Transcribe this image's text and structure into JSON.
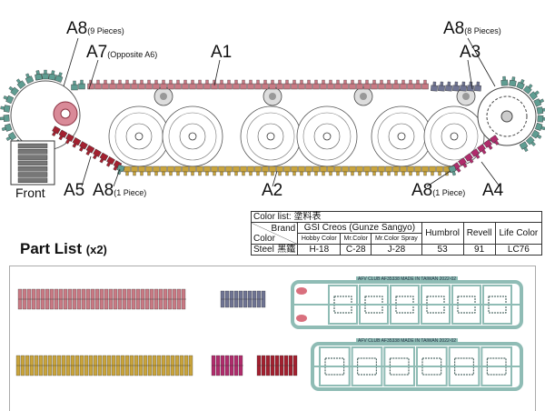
{
  "diagram": {
    "labels": {
      "a8_top_left": {
        "part": "A8",
        "note": "(9 Pieces)"
      },
      "a7": {
        "part": "A7",
        "note": "(Opposite A6)"
      },
      "a1": {
        "part": "A1"
      },
      "a8_top_right": {
        "part": "A8",
        "note": "(8 Pieces)"
      },
      "a3": {
        "part": "A3"
      },
      "a5": {
        "part": "A5"
      },
      "a8_bottom_left": {
        "part": "A8",
        "note": "(1 Piece)"
      },
      "a2": {
        "part": "A2"
      },
      "a8_bottom_right": {
        "part": "A8",
        "note": "(1 Piece)"
      },
      "a4": {
        "part": "A4"
      },
      "front": "Front"
    },
    "colors": {
      "A1": "#c97a84",
      "A2": "#c9a43c",
      "A3": "#6f7493",
      "A4": "#b02c6c",
      "A5": "#a3202f",
      "A8": "#5f9d92",
      "sprue": "#8fbcb5"
    }
  },
  "color_list": {
    "title": "Color list: 塗料表",
    "brand_header": "Brand",
    "color_header": "Color",
    "gsi_header": "GSI Creos (Gunze Sangyo)",
    "sub_headers": [
      "Hobby Color",
      "Mr.Color",
      "Mr.Color Spray"
    ],
    "humbrol_header": "Humbrol",
    "revell_header": "Revell",
    "life_color_header": "Life Color",
    "rows": [
      {
        "color": "Steel",
        "color_cn": "黑鐵",
        "hobby": "H-18",
        "mr_color": "C-28",
        "spray": "J-28",
        "humbrol": "53",
        "revell": "91",
        "life_color": "LC76"
      }
    ]
  },
  "part_list": {
    "title": "Part List",
    "quantity": "(x2)",
    "sprue_text": "AFV CLUB AF35338  MADE IN TAIWAN 2022-02"
  }
}
